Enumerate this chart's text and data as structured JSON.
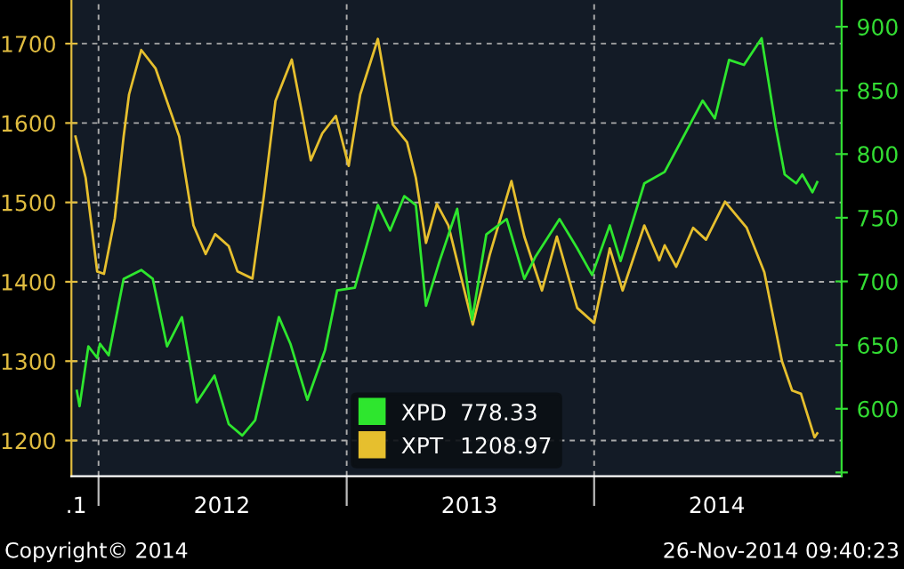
{
  "chart_data": {
    "type": "line",
    "xlim": [
      "2011-11-22",
      "2015-01-01"
    ],
    "xticks": [
      {
        "value": "2011-11-29",
        "label": ".1"
      },
      {
        "value": "2012-01-01",
        "label": null
      },
      {
        "value": "2012-07-01",
        "label": "2012"
      },
      {
        "value": "2013-01-01",
        "label": null
      },
      {
        "value": "2013-07-01",
        "label": "2013"
      },
      {
        "value": "2014-01-01",
        "label": null
      },
      {
        "value": "2014-07-01",
        "label": "2014"
      }
    ],
    "ylim": [
      1155,
      1755
    ],
    "yticks": [
      1200,
      1300,
      1400,
      1500,
      1600,
      1700
    ],
    "y2lim": [
      547,
      921
    ],
    "y2ticks": [
      {
        "value": 550,
        "label": null
      },
      600,
      650,
      700,
      750,
      800,
      850,
      900
    ],
    "grid": true,
    "legend": "bottom",
    "line_style": "solid",
    "series": [
      {
        "name": "XPD",
        "axis": "y2",
        "color": "#2ee62e",
        "x": [
          "2011-11-30",
          "2011-12-04",
          "2011-12-17",
          "2011-12-30",
          "2012-01-03",
          "2012-01-16",
          "2012-02-07",
          "2012-03-04",
          "2012-03-21",
          "2012-04-11",
          "2012-05-03",
          "2012-05-25",
          "2012-06-20",
          "2012-07-11",
          "2012-07-31",
          "2012-08-19",
          "2012-09-23",
          "2012-10-10",
          "2012-11-04",
          "2012-11-30",
          "2012-12-18",
          "2013-01-13",
          "2013-02-16",
          "2013-03-06",
          "2013-03-27",
          "2013-04-13",
          "2013-04-28",
          "2013-05-18",
          "2013-06-13",
          "2013-07-05",
          "2013-07-26",
          "2013-08-25",
          "2013-09-20",
          "2013-10-06",
          "2013-11-11",
          "2013-12-07",
          "2013-12-29",
          "2014-01-24",
          "2014-02-09",
          "2014-03-16",
          "2014-04-15",
          "2014-06-10",
          "2014-06-28",
          "2014-07-19",
          "2014-08-10",
          "2014-09-05",
          "2014-09-26",
          "2014-10-09",
          "2014-10-26",
          "2014-11-04",
          "2014-11-19",
          "2014-11-26"
        ],
        "values": [
          614,
          602,
          649,
          640,
          651,
          642,
          702,
          709,
          702,
          649,
          672,
          605,
          626,
          588,
          579,
          591,
          672,
          651,
          607,
          646,
          693,
          695,
          760,
          740,
          767,
          760,
          681,
          716,
          757,
          670,
          737,
          749,
          702,
          719,
          749,
          726,
          705,
          744,
          716,
          777,
          786,
          842,
          828,
          874,
          870,
          891,
          821,
          784,
          777,
          784,
          770,
          778
        ]
      },
      {
        "name": "XPT",
        "axis": "y",
        "color": "#e6bf2e",
        "x": [
          "2011-11-28",
          "2011-12-13",
          "2011-12-30",
          "2012-01-09",
          "2012-01-25",
          "2012-02-07",
          "2012-02-15",
          "2012-03-04",
          "2012-03-25",
          "2012-04-29",
          "2012-05-20",
          "2012-06-07",
          "2012-06-21",
          "2012-07-11",
          "2012-07-24",
          "2012-08-15",
          "2012-09-01",
          "2012-09-18",
          "2012-10-12",
          "2012-10-27",
          "2012-11-09",
          "2012-11-26",
          "2012-12-16",
          "2013-01-04",
          "2013-01-21",
          "2013-02-16",
          "2013-03-10",
          "2013-03-31",
          "2013-04-13",
          "2013-04-28",
          "2013-05-14",
          "2013-05-31",
          "2013-07-06",
          "2013-07-31",
          "2013-09-01",
          "2013-09-20",
          "2013-10-16",
          "2013-11-07",
          "2013-12-07",
          "2014-01-01",
          "2014-01-24",
          "2014-02-12",
          "2014-03-16",
          "2014-04-07",
          "2014-04-15",
          "2014-05-02",
          "2014-05-27",
          "2014-06-15",
          "2014-07-13",
          "2014-08-14",
          "2014-09-09",
          "2014-10-05",
          "2014-10-20",
          "2014-11-02",
          "2014-11-22",
          "2014-11-26"
        ],
        "values": [
          1583,
          1531,
          1413,
          1410,
          1480,
          1583,
          1636,
          1692,
          1669,
          1583,
          1471,
          1435,
          1460,
          1445,
          1413,
          1404,
          1509,
          1628,
          1680,
          1613,
          1553,
          1587,
          1609,
          1546,
          1636,
          1706,
          1598,
          1576,
          1531,
          1449,
          1498,
          1471,
          1346,
          1434,
          1527,
          1457,
          1389,
          1457,
          1367,
          1348,
          1442,
          1389,
          1471,
          1427,
          1446,
          1419,
          1468,
          1453,
          1501,
          1468,
          1412,
          1300,
          1263,
          1259,
          1204,
          1209
        ]
      }
    ],
    "annotations": [
      "Copyright© 2014",
      "26-Nov-2014 09:40:23",
      "778.33",
      "1208.97"
    ]
  }
}
